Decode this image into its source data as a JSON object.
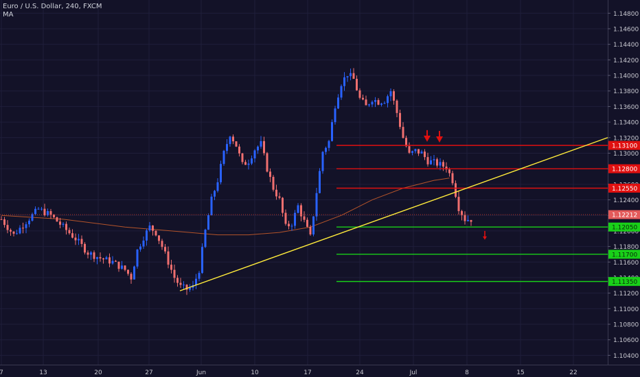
{
  "header": {
    "symbol_line": "Euro / U.S. Dollar, 240, FXCM",
    "indicator": "MA"
  },
  "colors": {
    "background": "#131228",
    "grid": "#1f1e3a",
    "up_candle": "#2962ff",
    "down_candle": "#ef6f6f",
    "trendline": "#ffeb3b",
    "resistance": "#e01010",
    "support": "#19d019",
    "ma": "#b5542a",
    "price_line": "#c0392b",
    "axis_text": "#c8c8d0"
  },
  "chart_data": {
    "type": "candlestick",
    "symbol": "EURUSD",
    "timeframe": "240",
    "exchange": "FXCM",
    "price_axis": {
      "ticks": [
        "1.14800",
        "1.14600",
        "1.14400",
        "1.14200",
        "1.14000",
        "1.13800",
        "1.13600",
        "1.13400",
        "1.13200",
        "1.13000",
        "1.12800",
        "1.12600",
        "1.12400",
        "1.12200",
        "1.12000",
        "1.11800",
        "1.11600",
        "1.11400",
        "1.11200",
        "1.11000",
        "1.10800",
        "1.10600",
        "1.10400"
      ],
      "ylim": [
        1.1028,
        1.1497
      ]
    },
    "time_axis": {
      "ticks": [
        "7",
        "13",
        "20",
        "27",
        "Jun",
        "10",
        "17",
        "24",
        "Jul",
        "8",
        "15",
        "22"
      ]
    },
    "price_path": [
      [
        0,
        1.1215
      ],
      [
        4,
        1.1195
      ],
      [
        8,
        1.1212
      ],
      [
        12,
        1.1228
      ],
      [
        16,
        1.122
      ],
      [
        20,
        1.1205
      ],
      [
        24,
        1.119
      ],
      [
        28,
        1.1172
      ],
      [
        32,
        1.1165
      ],
      [
        36,
        1.116
      ],
      [
        40,
        1.115
      ],
      [
        42,
        1.114
      ],
      [
        44,
        1.1175
      ],
      [
        46,
        1.1192
      ],
      [
        48,
        1.1205
      ],
      [
        50,
        1.1198
      ],
      [
        52,
        1.118
      ],
      [
        54,
        1.116
      ],
      [
        56,
        1.114
      ],
      [
        58,
        1.1128
      ],
      [
        60,
        1.1125
      ],
      [
        62,
        1.1128
      ],
      [
        64,
        1.115
      ],
      [
        66,
        1.12
      ],
      [
        68,
        1.124
      ],
      [
        70,
        1.1265
      ],
      [
        72,
        1.13
      ],
      [
        74,
        1.1325
      ],
      [
        76,
        1.131
      ],
      [
        78,
        1.1285
      ],
      [
        80,
        1.129
      ],
      [
        82,
        1.1305
      ],
      [
        84,
        1.1312
      ],
      [
        86,
        1.128
      ],
      [
        88,
        1.1255
      ],
      [
        90,
        1.124
      ],
      [
        92,
        1.1205
      ],
      [
        94,
        1.121
      ],
      [
        96,
        1.1232
      ],
      [
        98,
        1.1212
      ],
      [
        100,
        1.1192
      ],
      [
        102,
        1.125
      ],
      [
        104,
        1.1302
      ],
      [
        106,
        1.1315
      ],
      [
        108,
        1.1362
      ],
      [
        110,
        1.139
      ],
      [
        112,
        1.1402
      ],
      [
        114,
        1.1395
      ],
      [
        116,
        1.137
      ],
      [
        118,
        1.136
      ],
      [
        120,
        1.137
      ],
      [
        122,
        1.1366
      ],
      [
        124,
        1.1368
      ],
      [
        126,
        1.138
      ],
      [
        128,
        1.1352
      ],
      [
        130,
        1.132
      ],
      [
        132,
        1.1298
      ],
      [
        134,
        1.1303
      ],
      [
        136,
        1.13
      ],
      [
        138,
        1.129
      ],
      [
        140,
        1.1288
      ],
      [
        142,
        1.1285
      ],
      [
        144,
        1.1282
      ],
      [
        146,
        1.1265
      ],
      [
        148,
        1.123
      ],
      [
        150,
        1.1215
      ],
      [
        152,
        1.1215
      ]
    ],
    "moving_average": [
      [
        0,
        1.122
      ],
      [
        20,
        1.1215
      ],
      [
        40,
        1.1205
      ],
      [
        55,
        1.12
      ],
      [
        70,
        1.1195
      ],
      [
        80,
        1.1195
      ],
      [
        90,
        1.1198
      ],
      [
        100,
        1.1205
      ],
      [
        110,
        1.122
      ],
      [
        120,
        1.124
      ],
      [
        130,
        1.1255
      ],
      [
        140,
        1.1265
      ],
      [
        145,
        1.1268
      ]
    ],
    "trendline": {
      "from": [
        57,
        1.1123
      ],
      "to": [
        196,
        1.132
      ]
    },
    "levels": [
      {
        "price": 1.131,
        "label": "1.13100",
        "kind": "resistance"
      },
      {
        "price": 1.128,
        "label": "1.12800",
        "kind": "resistance"
      },
      {
        "price": 1.1255,
        "label": "1.12550",
        "kind": "resistance"
      },
      {
        "price": 1.1205,
        "label": "1.12050",
        "kind": "support"
      },
      {
        "price": 1.117,
        "label": "1.11700",
        "kind": "support"
      },
      {
        "price": 1.1135,
        "label": "1.11350",
        "kind": "support"
      }
    ],
    "last_price": {
      "price": 1.1221,
      "label": "1.12212"
    },
    "markers": [
      {
        "type": "arrow-down",
        "x": 137,
        "price": 1.1312
      },
      {
        "type": "arrow-down",
        "x": 141,
        "price": 1.1311
      },
      {
        "type": "arrow-down",
        "x": 155,
        "price": 1.12
      }
    ]
  }
}
